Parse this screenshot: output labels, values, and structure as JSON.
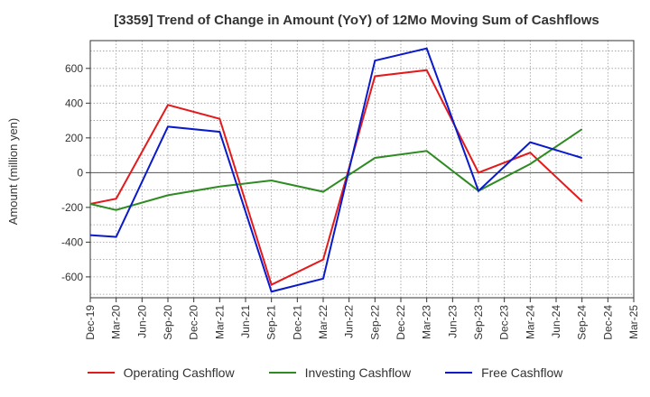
{
  "chart_data": {
    "type": "line",
    "title": "[3359]  Trend of Change in Amount (YoY) of 12Mo Moving Sum of Cashflows",
    "xlabel": "",
    "ylabel": "Amount (million yen)",
    "ylim": [
      -720,
      760
    ],
    "yticks": [
      -600,
      -400,
      -200,
      0,
      200,
      400,
      600
    ],
    "grid": true,
    "legend_position": "bottom",
    "categories": [
      "Dec-19",
      "Mar-20",
      "Jun-20",
      "Sep-20",
      "Dec-20",
      "Mar-21",
      "Jun-21",
      "Sep-21",
      "Dec-21",
      "Mar-22",
      "Jun-22",
      "Sep-22",
      "Dec-22",
      "Mar-23",
      "Jun-23",
      "Sep-23",
      "Dec-23",
      "Mar-24",
      "Jun-24",
      "Sep-24",
      "Dec-24",
      "Mar-25"
    ],
    "series": [
      {
        "name": "Operating Cashflow",
        "color": "#e31a1c",
        "values": [
          -180,
          -150,
          null,
          390,
          null,
          310,
          null,
          -645,
          null,
          -500,
          null,
          555,
          null,
          590,
          null,
          0,
          null,
          115,
          null,
          -165,
          null,
          null
        ]
      },
      {
        "name": "Investing Cashflow",
        "color": "#2e8b22",
        "values": [
          -180,
          -215,
          null,
          -130,
          null,
          -80,
          null,
          -45,
          null,
          -110,
          null,
          85,
          null,
          125,
          null,
          -105,
          null,
          50,
          null,
          250,
          null,
          null
        ]
      },
      {
        "name": "Free Cashflow",
        "color": "#0a1acb",
        "values": [
          -360,
          -370,
          null,
          265,
          null,
          235,
          null,
          -685,
          null,
          -610,
          null,
          645,
          null,
          715,
          null,
          -105,
          null,
          175,
          null,
          85,
          null,
          null
        ]
      }
    ]
  }
}
